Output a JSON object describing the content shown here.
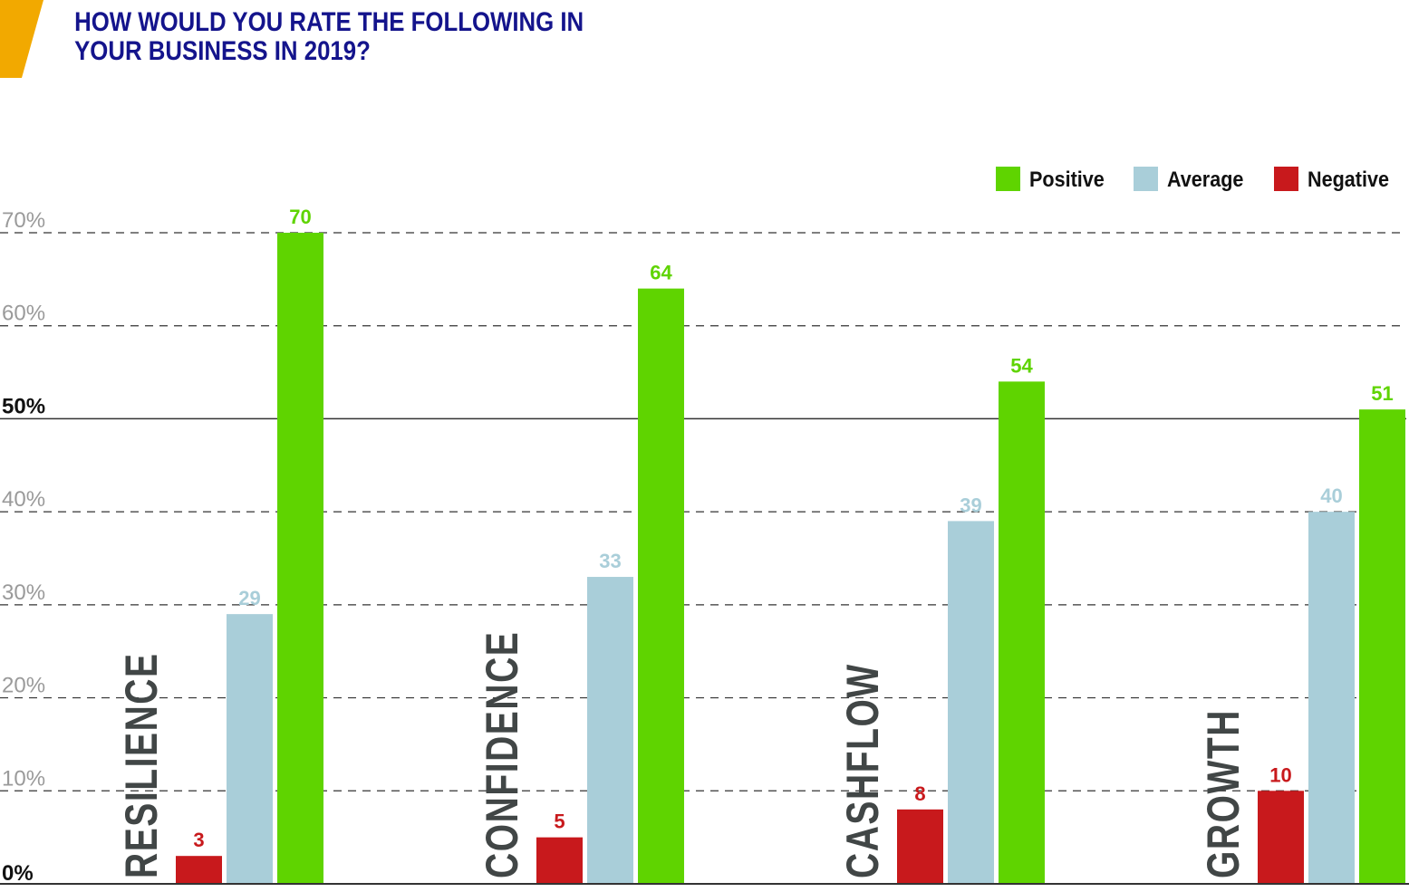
{
  "title": {
    "line1": "HOW WOULD YOU RATE THE FOLLOWING IN",
    "line2": "YOUR BUSINESS IN 2019?"
  },
  "colors": {
    "accent": "#f2a900",
    "title": "#14148c",
    "positive": "#5fd400",
    "average": "#a9ced9",
    "negative": "#c8191c",
    "category_text": "#414646",
    "tick_text": "#9a9a9a",
    "gridline": "#333333"
  },
  "chart_data": {
    "type": "bar",
    "orientation": "vertical",
    "categories": [
      "RESILIENCE",
      "CONFIDENCE",
      "CASHFLOW",
      "GROWTH"
    ],
    "series": [
      {
        "name": "Negative",
        "values": [
          3,
          5,
          8,
          10
        ],
        "color": "#c8191c"
      },
      {
        "name": "Average",
        "values": [
          29,
          33,
          39,
          40
        ],
        "color": "#a9ced9"
      },
      {
        "name": "Positive",
        "values": [
          70,
          64,
          54,
          51
        ],
        "color": "#5fd400"
      }
    ],
    "legend_order": [
      "Positive",
      "Average",
      "Negative"
    ],
    "legend_position": "top-right",
    "ylim": [
      0,
      70
    ],
    "y_ticks": [
      0,
      10,
      20,
      30,
      40,
      50,
      60,
      70
    ],
    "y_tick_labels": [
      "0%",
      "10%",
      "20%",
      "30%",
      "40%",
      "50%",
      "60%",
      "70%"
    ],
    "emphasized_ticks": [
      0,
      50
    ],
    "grid": "dashed horizontal, solid at 50%",
    "data_labels": true,
    "category_label_orientation": "vertical"
  }
}
